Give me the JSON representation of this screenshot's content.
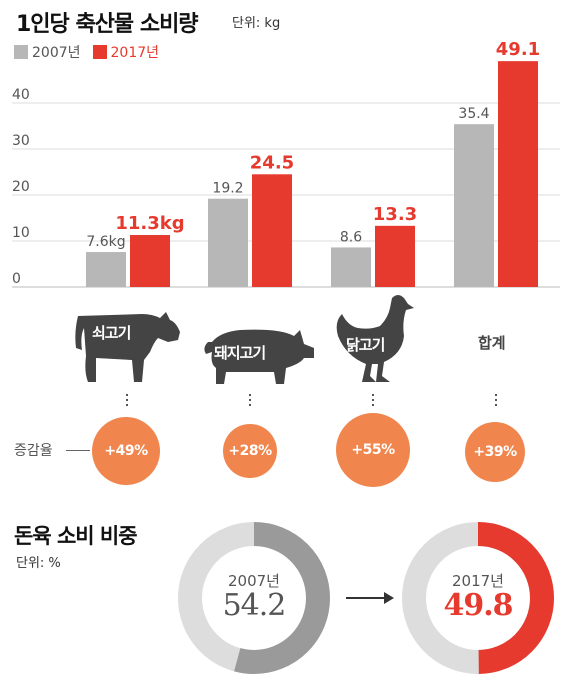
{
  "header": {
    "title": "1인당 축산물 소비량",
    "unit": "단위: kg"
  },
  "legend": [
    {
      "label": "2007년",
      "color": "#b7b7b7"
    },
    {
      "label": "2017년",
      "color": "#e63a2e"
    }
  ],
  "chart_data": [
    {
      "type": "bar",
      "title": "1인당 축산물 소비량",
      "unit": "kg",
      "categories": [
        "쇠고기",
        "돼지고기",
        "닭고기",
        "합계"
      ],
      "series": [
        {
          "name": "2007년",
          "values": [
            7.6,
            19.2,
            8.6,
            35.4
          ],
          "color": "#b7b7b7"
        },
        {
          "name": "2017년",
          "values": [
            11.3,
            24.5,
            13.3,
            49.1
          ],
          "color": "#e63a2e"
        }
      ],
      "value_labels": {
        "2007년": [
          "7.6kg",
          "19.2",
          "8.6",
          "35.4"
        ],
        "2017년": [
          "11.3kg",
          "24.5",
          "13.3",
          "49.1"
        ]
      },
      "ylim": [
        0,
        50
      ],
      "yticks": [
        0,
        10,
        20,
        30,
        40
      ],
      "increase_rate_label": "증감율",
      "increase_rates": [
        "+49%",
        "+28%",
        "+55%",
        "+39%"
      ]
    },
    {
      "type": "pie",
      "title": "돈육 소비 비중",
      "unit": "단위: %",
      "slices": [
        {
          "label": "2007년",
          "value": 54.2,
          "display": "54.2",
          "color": "#9a9a9a"
        },
        {
          "label": "2017년",
          "value": 49.8,
          "display": "49.8",
          "color": "#e63a2e"
        }
      ]
    }
  ],
  "icons": [
    "cow-icon",
    "pig-icon",
    "chicken-icon",
    "arrow-right-icon"
  ]
}
